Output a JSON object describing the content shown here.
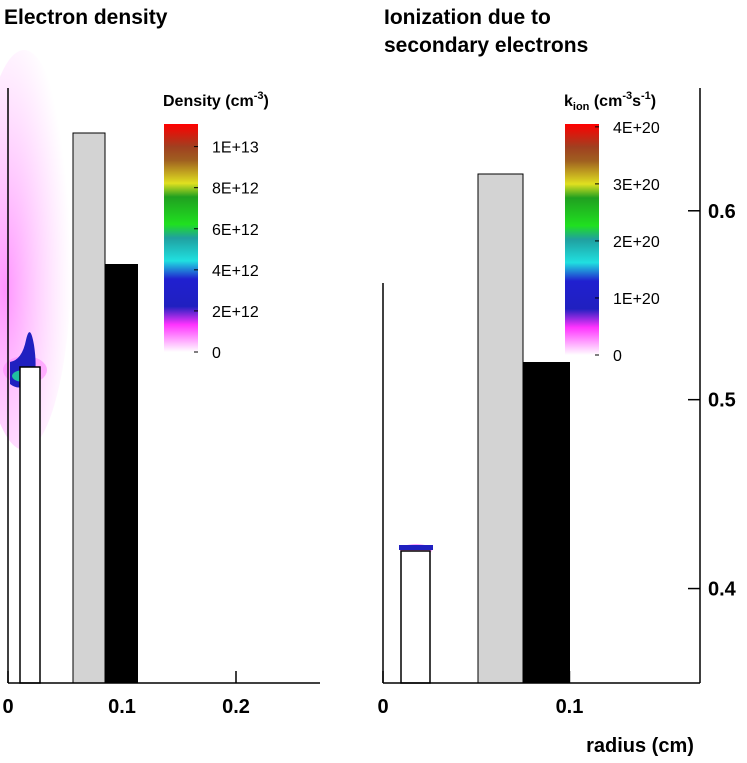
{
  "chart_data": [
    {
      "type": "contour",
      "title": [
        "Electron density"
      ],
      "colorbar_label": [
        "Density (cm",
        "-3",
        ")"
      ],
      "xlim": [
        0,
        0.275
      ],
      "xticks": [
        0,
        0.1,
        0.2
      ],
      "clim": [
        0,
        11100000000000.0
      ],
      "cticks": [
        {
          "value": 0,
          "label": "0"
        },
        {
          "value": 2000000000000.0,
          "label": "2E+12"
        },
        {
          "value": 4000000000000.0,
          "label": "4E+12"
        },
        {
          "value": 6000000000000.0,
          "label": "6E+12"
        },
        {
          "value": 8000000000000.0,
          "label": "8E+12"
        },
        {
          "value": 10000000000000.0,
          "label": "1E+13"
        }
      ]
    },
    {
      "type": "contour",
      "title": [
        "Ionization due to",
        "secondary electrons"
      ],
      "colorbar_label": [
        "k",
        "ion",
        " (cm",
        "-3",
        "s",
        "-1",
        ")"
      ],
      "xlabel": "radius (cm)",
      "xlim": [
        0,
        0.17
      ],
      "xticks": [
        0,
        0.1
      ],
      "ylim": [
        0.35,
        0.665
      ],
      "yticks": [
        0.4,
        0.5,
        0.6
      ],
      "clim": [
        0,
        4.05e+20
      ],
      "cticks": [
        {
          "value": 0,
          "label": "0"
        },
        {
          "value": 1e+20,
          "label": "1E+20"
        },
        {
          "value": 2e+20,
          "label": "2E+20"
        },
        {
          "value": 3e+20,
          "label": "3E+20"
        },
        {
          "value": 4e+20,
          "label": "4E+20"
        }
      ]
    }
  ]
}
